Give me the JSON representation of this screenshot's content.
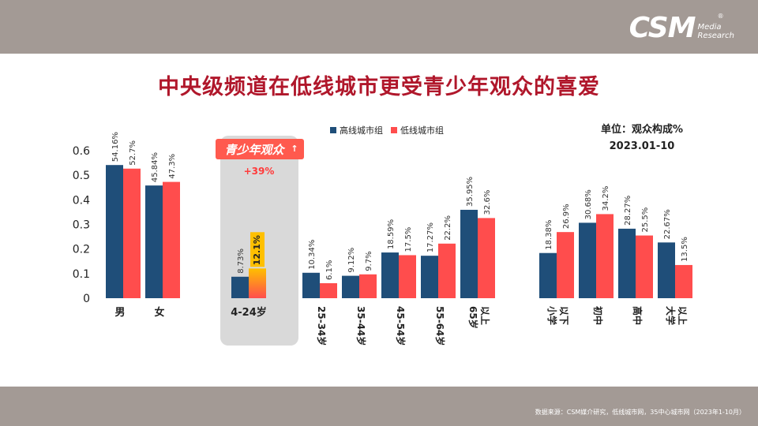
{
  "header": {
    "logo_main": "CSM",
    "logo_reg": "®",
    "logo_sub_line1": "Media",
    "logo_sub_line2": "Research"
  },
  "title": "中央级频道在低线城市更受青少年观众的喜爱",
  "unit_line1": "单位：观众构成%",
  "unit_line2": "2023.01-10",
  "source": "数据来源：CSM媒介研究，低线城市网，35中心城市网（2023年1-10月）",
  "colors": {
    "series_high": "#1f4e79",
    "series_low": "#ff4d4d",
    "highlight_badge": "#ff5a4e",
    "highlight_label_bg": "#ffc000",
    "growth_text": "#ff3b3b",
    "highlight_panel": "#d9d9d9"
  },
  "highlight": {
    "badge": "青少年观众",
    "badge_arrow": "↑",
    "growth": "+39%"
  },
  "chart_data": {
    "type": "bar",
    "title": "中央级频道在低线城市更受青少年观众的喜爱",
    "xlabel": "",
    "ylabel": "",
    "ylim": [
      0,
      0.6
    ],
    "yticks": [
      "0",
      "0.1",
      "0.2",
      "0.3",
      "0.4",
      "0.5",
      "0.6"
    ],
    "grid": false,
    "legend_position": "top",
    "categories": [
      "男",
      "女",
      "4-24岁",
      "25-34岁",
      "35-44岁",
      "45-54岁",
      "55-64岁",
      "65岁以上",
      "小学以下",
      "初中",
      "高中",
      "大学以上"
    ],
    "category_lines": [
      [
        "男"
      ],
      [
        "女"
      ],
      [
        "4-24岁"
      ],
      [
        "25-34岁"
      ],
      [
        "35-44岁"
      ],
      [
        "45-54岁"
      ],
      [
        "55-64岁"
      ],
      [
        "65岁",
        "以上"
      ],
      [
        "小学",
        "以下"
      ],
      [
        "初中"
      ],
      [
        "高中"
      ],
      [
        "大学",
        "以上"
      ]
    ],
    "category_vertical": [
      false,
      false,
      false,
      true,
      true,
      true,
      true,
      true,
      true,
      true,
      true,
      true
    ],
    "series": [
      {
        "name": "高线城市组",
        "values": [
          0.5416,
          0.4584,
          0.0873,
          0.1034,
          0.0912,
          0.1859,
          0.1727,
          0.3595,
          0.1838,
          0.3068,
          0.2827,
          0.2267
        ],
        "labels": [
          "54.16%",
          "45.84%",
          "8.73%",
          "10.34%",
          "9.12%",
          "18.59%",
          "17.27%",
          "35.95%",
          "18.38%",
          "30.68%",
          "28.27%",
          "22.67%"
        ]
      },
      {
        "name": "低线城市组",
        "values": [
          0.527,
          0.473,
          0.121,
          0.061,
          0.097,
          0.175,
          0.222,
          0.326,
          0.269,
          0.342,
          0.255,
          0.135
        ],
        "labels": [
          "52.7%",
          "47.3%",
          "12.1%",
          "6.1%",
          "9.7%",
          "17.5%",
          "22.2%",
          "32.6%",
          "26.9%",
          "34.2%",
          "25.5%",
          "13.5%"
        ]
      }
    ]
  }
}
